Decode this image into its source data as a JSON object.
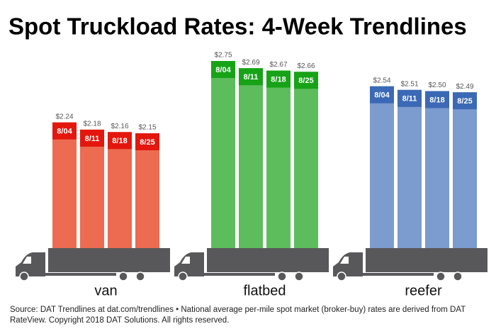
{
  "chart_data": {
    "type": "bar",
    "title": "Spot Truckload Rates: 4-Week Trendlines",
    "groups": [
      {
        "name": "van",
        "color": "#ec6b51",
        "head_color": "#e3170d",
        "weeks": [
          "8/04",
          "8/11",
          "8/18",
          "8/25"
        ],
        "values": [
          2.24,
          2.18,
          2.16,
          2.15
        ],
        "value_labels": [
          "$2.24",
          "$2.18",
          "$2.16",
          "$2.15"
        ]
      },
      {
        "name": "flatbed",
        "color": "#5dbd5d",
        "head_color": "#17a317",
        "weeks": [
          "8/04",
          "8/11",
          "8/18",
          "8/25"
        ],
        "values": [
          2.75,
          2.69,
          2.67,
          2.66
        ],
        "value_labels": [
          "$2.75",
          "$2.69",
          "$2.67",
          "$2.66"
        ]
      },
      {
        "name": "reefer",
        "color": "#7c9bce",
        "head_color": "#3b69b5",
        "weeks": [
          "8/04",
          "8/11",
          "8/18",
          "8/25"
        ],
        "values": [
          2.54,
          2.51,
          2.5,
          2.49
        ],
        "value_labels": [
          "$2.54",
          "$2.51",
          "$2.50",
          "$2.49"
        ]
      }
    ],
    "source": [
      "Source: DAT Trendlines at dat.com/trendlines • National average per-mile spot market (broker-buy) rates are derived from DAT",
      "RateView. Copyright 2018 DAT Solutions. All rights reserved."
    ]
  }
}
